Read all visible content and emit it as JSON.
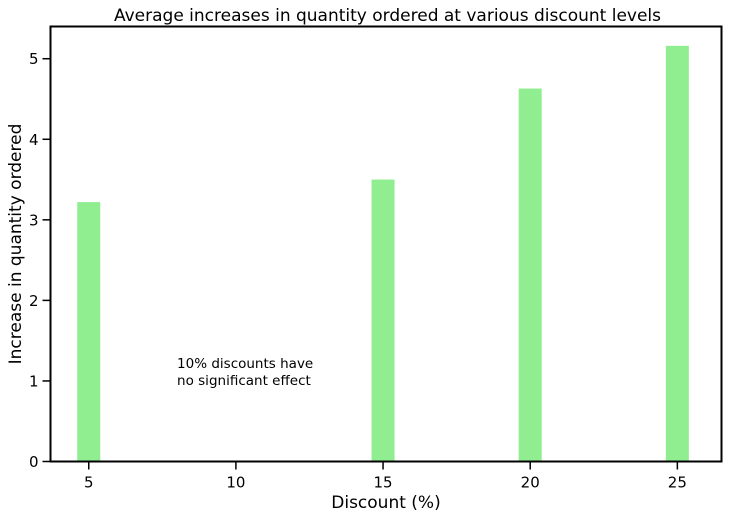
{
  "chart_data": {
    "type": "bar",
    "title": "Average increases in quantity ordered at various discount levels",
    "xlabel": "Discount (%)",
    "ylabel": "Increase in quantity ordered",
    "x": [
      5,
      15,
      20,
      25
    ],
    "values": [
      3.22,
      3.5,
      4.63,
      5.16
    ],
    "xticks": [
      5,
      10,
      15,
      20,
      25
    ],
    "yticks": [
      0,
      1,
      2,
      3,
      4,
      5
    ],
    "xlim": [
      3.7,
      26.5
    ],
    "ylim": [
      0,
      5.4
    ],
    "bar_color": "#90ee90",
    "grid": false,
    "annotation": {
      "lines": [
        "10% discounts have",
        "no significant effect"
      ],
      "x": 8,
      "y": 1.0
    }
  }
}
